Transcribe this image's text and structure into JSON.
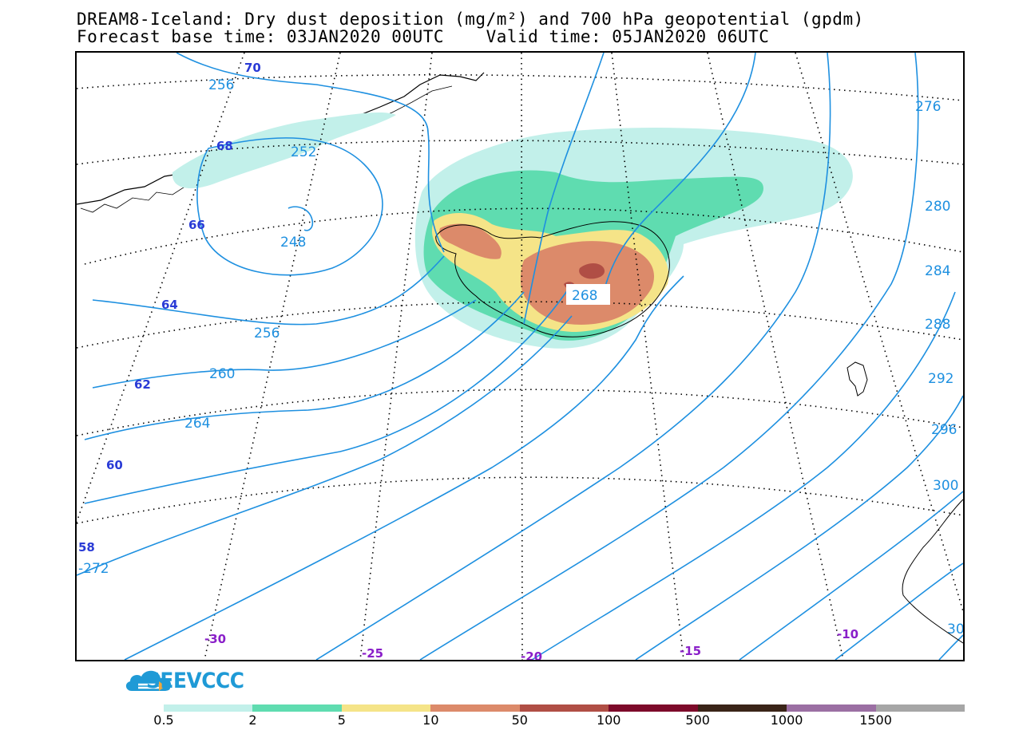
{
  "title": {
    "line1": "DREAM8-Iceland: Dry dust deposition (mg/m²) and 700 hPa geopotential (gpdm)",
    "line2": "Forecast base time: 03JAN2020 00UTC    Valid time: 05JAN2020 06UTC"
  },
  "colors": {
    "contour": "#1e90e0",
    "lat_label": "#2a3bd6",
    "lon_label": "#8a1fc9",
    "dust_0_5": "#c2f0ea",
    "dust_2": "#5fdcb0",
    "dust_5": "#f5e488",
    "dust_10": "#dc8a6a",
    "dust_50": "#b04e45"
  },
  "contour_labels": [
    "256",
    "252",
    "248",
    "256",
    "260",
    "264",
    "-272",
    "268",
    "276",
    "280",
    "284",
    "288",
    "292",
    "296",
    "300",
    "30"
  ],
  "lat_labels": [
    "70",
    "68",
    "66",
    "64",
    "62",
    "60",
    "58"
  ],
  "lon_labels": [
    "-30",
    "-25",
    "-20",
    "-15",
    "-10"
  ],
  "logo": {
    "text": "SEEVCCC"
  },
  "legend": {
    "ticks": [
      "0.5",
      "2",
      "5",
      "10",
      "50",
      "100",
      "500",
      "1000",
      "1500"
    ],
    "colors": [
      "#c2f0ea",
      "#5fdcb0",
      "#f5e488",
      "#dc8a6a",
      "#b04e45",
      "#7d0a2a",
      "#3a2418",
      "#9b6fa3",
      "#a6a6a6"
    ]
  }
}
